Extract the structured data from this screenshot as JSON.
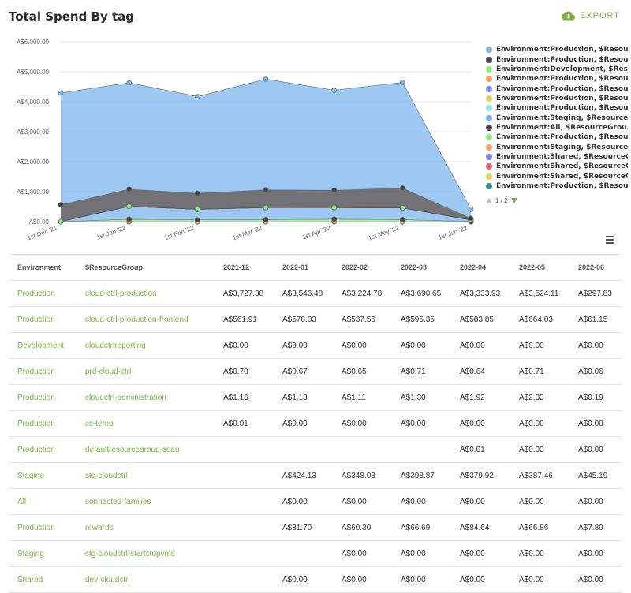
{
  "header": {
    "title": "Total Spend By tag",
    "export_label": "EXPORT"
  },
  "colors": {
    "accent": "#7cb342"
  },
  "legend": {
    "items": [
      {
        "label": "Environment:Production, $Resou...",
        "color": "#7cb5ec"
      },
      {
        "label": "Environment:Production, $Resou...",
        "color": "#434348"
      },
      {
        "label": "Environment:Development, $Reso...",
        "color": "#90ed7d"
      },
      {
        "label": "Environment:Production, $Resou...",
        "color": "#f7a35c"
      },
      {
        "label": "Environment:Production, $Resou...",
        "color": "#8085e9"
      },
      {
        "label": "Environment:Production, $Resou...",
        "color": "#e4d354"
      },
      {
        "label": "Environment:Production, $Resou...",
        "color": "#91e8e1"
      },
      {
        "label": "Environment:Staging, $Resource...",
        "color": "#7cb5ec"
      },
      {
        "label": "Environment:All, $ResourceGrou...",
        "color": "#434348"
      },
      {
        "label": "Environment:Production, $Resou...",
        "color": "#90ed7d"
      },
      {
        "label": "Environment:Staging, $Resource...",
        "color": "#f7a35c"
      },
      {
        "label": "Environment:Shared, $ResourceG...",
        "color": "#8085e9"
      },
      {
        "label": "Environment:Shared, $ResourceG...",
        "color": "#f15c80"
      },
      {
        "label": "Environment:Shared, $ResourceG...",
        "color": "#e4d354"
      },
      {
        "label": "Environment:Production, $Resou...",
        "color": "#2b908f"
      }
    ],
    "page_label": "1 / 2"
  },
  "chart_data": {
    "type": "area",
    "stacked": true,
    "categories": [
      "1st Dec '21",
      "1st Jan '22",
      "1st Feb '22",
      "1st Mar '22",
      "1st Apr '22",
      "1st May '22",
      "1st Jun '22"
    ],
    "y_ticks": [
      "A$0.00",
      "A$1,000.00",
      "A$2,000.00",
      "A$3,000.00",
      "A$4,000.00",
      "A$5,000.00",
      "A$6,000.00"
    ],
    "ylim": [
      0,
      6000
    ],
    "grid": true,
    "legend_position": "right",
    "series": [
      {
        "color": "#2b908f",
        "values": [
          0,
          0,
          0,
          0,
          0,
          0,
          0
        ]
      },
      {
        "color": "#e4d354",
        "values": [
          0,
          0,
          0,
          0,
          0,
          0,
          0
        ]
      },
      {
        "color": "#f15c80",
        "values": [
          0,
          0,
          0,
          0,
          0,
          0,
          0
        ]
      },
      {
        "color": "#8085e9",
        "values": [
          0,
          0,
          0,
          0,
          0,
          0,
          0
        ]
      },
      {
        "color": "#f7a35c",
        "values": [
          0,
          0,
          0,
          0,
          0,
          0,
          0
        ]
      },
      {
        "color": "#90ed7d",
        "values": [
          0,
          81.7,
          60.3,
          66.69,
          84.64,
          66.86,
          7.89
        ]
      },
      {
        "color": "#434348",
        "values": [
          0,
          0,
          0,
          0,
          0,
          0,
          0
        ]
      },
      {
        "color": "#7cb5ec",
        "values": [
          0,
          424.13,
          348.03,
          398.87,
          379.92,
          387.46,
          45.19
        ]
      },
      {
        "color": "#91e8e1",
        "values": [
          1.16,
          1.13,
          1.11,
          1.3,
          1.92,
          2.33,
          0.19
        ]
      },
      {
        "color": "#e4d354",
        "values": [
          0.7,
          0.67,
          0.65,
          0.71,
          0.64,
          0.71,
          0.06
        ]
      },
      {
        "color": "#8085e9",
        "values": [
          0,
          0,
          0,
          0,
          0.01,
          0.03,
          0
        ]
      },
      {
        "color": "#f7a35c",
        "values": [
          0.01,
          0,
          0,
          0,
          0,
          0,
          0
        ]
      },
      {
        "color": "#90ed7d",
        "values": [
          0,
          0,
          0,
          0,
          0,
          0,
          0
        ]
      },
      {
        "color": "#434348",
        "values": [
          561.91,
          578.03,
          537.56,
          595.35,
          583.85,
          664.03,
          61.15
        ]
      },
      {
        "color": "#7cb5ec",
        "values": [
          3727.38,
          3546.48,
          3224.78,
          3690.65,
          3333.93,
          3524.11,
          297.83
        ]
      }
    ]
  },
  "table": {
    "headers": [
      "Environment",
      "$ResourceGroup",
      "2021-12",
      "2022-01",
      "2022-02",
      "2022-03",
      "2022-04",
      "2022-05",
      "2022-06"
    ],
    "rows": [
      [
        "Production",
        "cloud-ctrl-production",
        "A$3,727.38",
        "A$3,546.48",
        "A$3,224.78",
        "A$3,690.65",
        "A$3,333.93",
        "A$3,524.11",
        "A$297.83"
      ],
      [
        "Production",
        "cloud-ctrl-production-frontend",
        "A$561.91",
        "A$578.03",
        "A$537.56",
        "A$595.35",
        "A$583.85",
        "A$664.03",
        "A$61.15"
      ],
      [
        "Development",
        "cloudctrlreporting",
        "A$0.00",
        "A$0.00",
        "A$0.00",
        "A$0.00",
        "A$0.00",
        "A$0.00",
        "A$0.00"
      ],
      [
        "Production",
        "prd-cloud-ctrl",
        "A$0.70",
        "A$0.67",
        "A$0.65",
        "A$0.71",
        "A$0.64",
        "A$0.71",
        "A$0.06"
      ],
      [
        "Production",
        "cloudctrl-administration",
        "A$1.16",
        "A$1.13",
        "A$1.11",
        "A$1.30",
        "A$1.92",
        "A$2.33",
        "A$0.19"
      ],
      [
        "Production",
        "cc-temp",
        "A$0.01",
        "A$0.00",
        "A$0.00",
        "A$0.00",
        "A$0.00",
        "A$0.00",
        "A$0.00"
      ],
      [
        "Production",
        "defaultresourcegroup-seau",
        "",
        "",
        "",
        "",
        "A$0.01",
        "A$0.03",
        "A$0.00"
      ],
      [
        "Staging",
        "stg-cloudctrl",
        "",
        "A$424.13",
        "A$348.03",
        "A$398.87",
        "A$379.92",
        "A$387.46",
        "A$45.19"
      ],
      [
        "All",
        "connected-families",
        "",
        "A$0.00",
        "A$0.00",
        "A$0.00",
        "A$0.00",
        "A$0.00",
        "A$0.00"
      ],
      [
        "Production",
        "rewards",
        "",
        "A$81.70",
        "A$60.30",
        "A$66.69",
        "A$84.64",
        "A$66.86",
        "A$7.89"
      ],
      [
        "Staging",
        "stg-cloudctrl-startstopvms",
        "",
        "",
        "A$0.00",
        "A$0.00",
        "A$0.00",
        "A$0.00",
        "A$0.00"
      ],
      [
        "Shared",
        "dev-cloudctrl",
        "",
        "A$0.00",
        "A$0.00",
        "A$0.00",
        "A$0.00",
        "A$0.00",
        "A$0.00"
      ]
    ]
  }
}
